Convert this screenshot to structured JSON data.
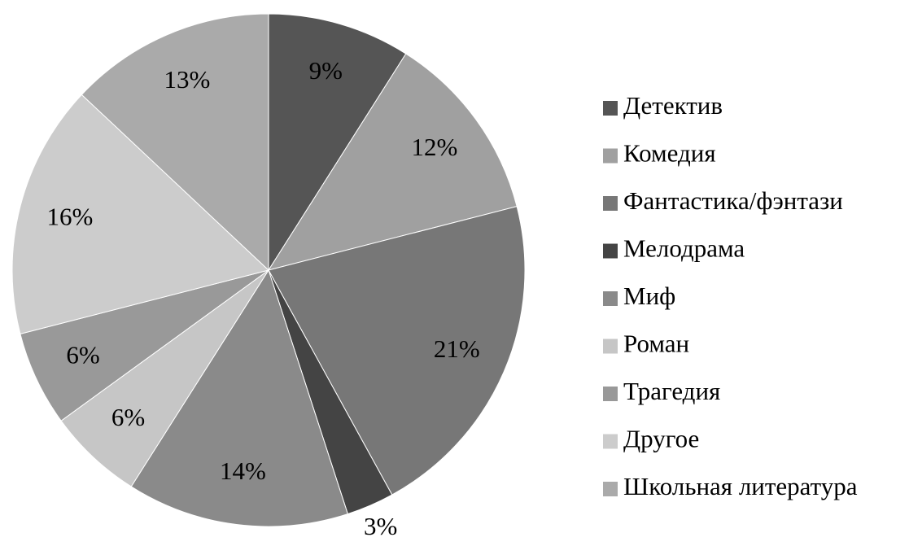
{
  "chart_data": {
    "type": "pie",
    "categories": [
      "Детектив",
      "Комедия",
      "Фантастика/фэнтази",
      "Мелодрама",
      "Миф",
      "Роман",
      "Трагедия",
      "Другое",
      "Школьная литература"
    ],
    "values": [
      9,
      12,
      21,
      3,
      14,
      6,
      6,
      16,
      13
    ],
    "value_labels": [
      "9%",
      "12%",
      "21%",
      "3%",
      "14%",
      "6%",
      "6%",
      "16%",
      "13%"
    ],
    "colors": [
      "#555555",
      "#a0a0a0",
      "#777777",
      "#444444",
      "#8a8a8a",
      "#c6c6c6",
      "#999999",
      "#cccccc",
      "#aaaaaa"
    ],
    "legend": "right"
  }
}
